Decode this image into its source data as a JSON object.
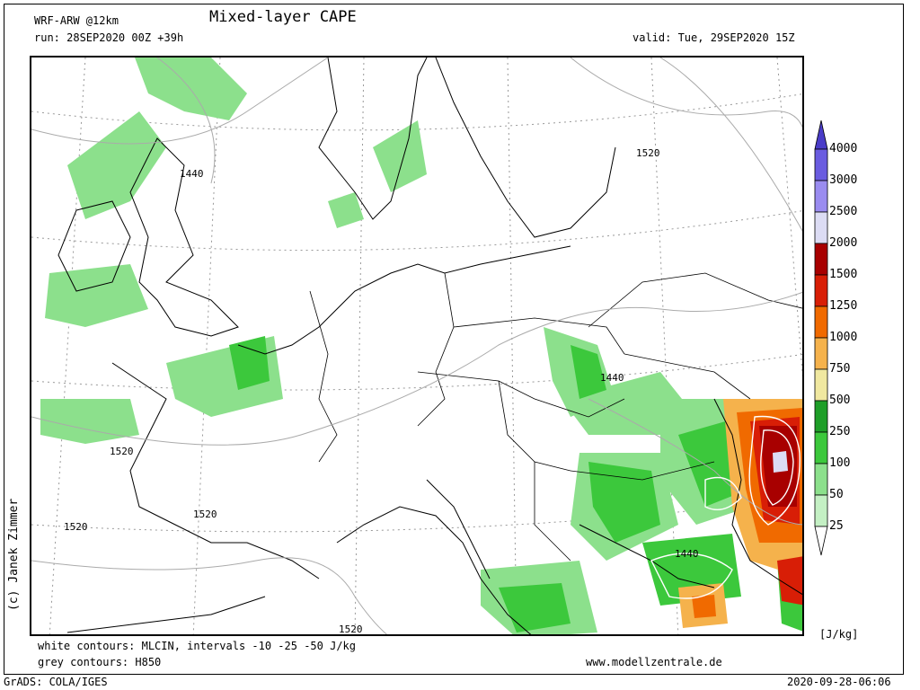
{
  "header": {
    "model": "WRF-ARW @12km",
    "title": "Mixed-layer CAPE",
    "run": "run: 28SEP2020 00Z +39h",
    "valid": "valid: Tue, 29SEP2020 15Z"
  },
  "footer": {
    "white_contours": "white contours: MLCIN, intervals -10 -25 -50 J/kg",
    "grey_contours": "grey contours: H850",
    "website": "www.modellzentrale.de",
    "grads": "GrADS: COLA/IGES",
    "timestamp": "2020-09-28-06:06"
  },
  "copyright": "(c) Janek Zimmer",
  "legend": {
    "unit": "[J/kg]",
    "levels": [
      {
        "label": "4000",
        "color": "#4a3cc8"
      },
      {
        "label": "3000",
        "color": "#6a5ce0"
      },
      {
        "label": "2500",
        "color": "#9a8cf0"
      },
      {
        "label": "2000",
        "color": "#dcdcf4"
      },
      {
        "label": "1500",
        "color": "#a80000"
      },
      {
        "label": "1250",
        "color": "#d81e06"
      },
      {
        "label": "1000",
        "color": "#f06a00"
      },
      {
        "label": "750",
        "color": "#f5b24c"
      },
      {
        "label": "500",
        "color": "#f0e8a0"
      },
      {
        "label": "250",
        "color": "#1e9e28"
      },
      {
        "label": "100",
        "color": "#3cc83c"
      },
      {
        "label": "50",
        "color": "#8ce08c"
      },
      {
        "label": "25",
        "color": "#c4f0c4"
      }
    ]
  },
  "contour_labels": [
    "1440",
    "1520",
    "1520",
    "1440",
    "1520",
    "1520",
    "1520",
    "1440",
    "1520"
  ]
}
